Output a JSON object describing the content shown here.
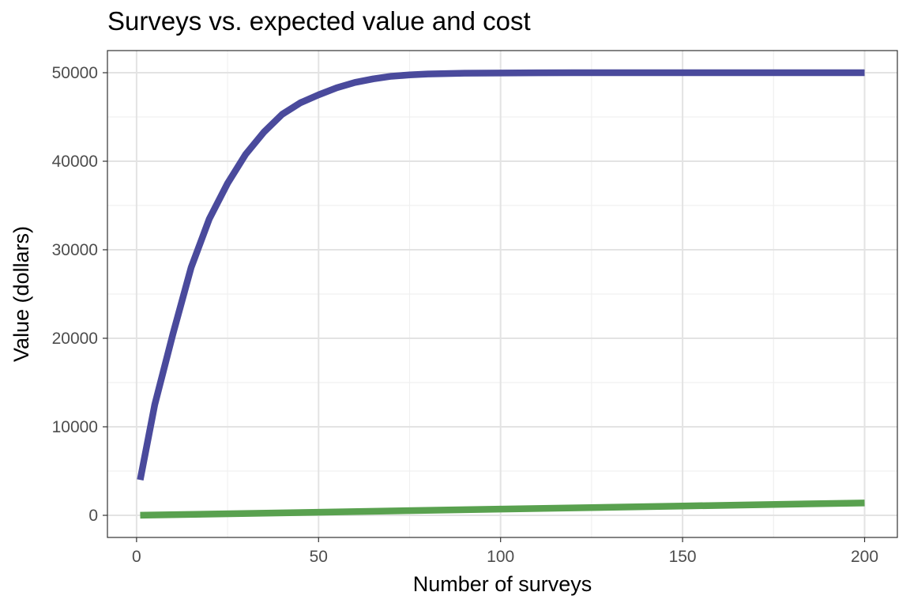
{
  "chart_data": {
    "type": "line",
    "title": "Surveys vs. expected value and cost",
    "xlabel": "Number of surveys",
    "ylabel": "Value (dollars)",
    "xlim": [
      -8,
      209
    ],
    "ylim": [
      -2500,
      52500
    ],
    "x_ticks": [
      0,
      50,
      100,
      150,
      200
    ],
    "x_tick_labels": [
      "0",
      "50",
      "100",
      "150",
      "200"
    ],
    "y_ticks": [
      0,
      10000,
      20000,
      30000,
      40000,
      50000
    ],
    "y_tick_labels": [
      "0",
      "10000",
      "20000",
      "30000",
      "40000",
      "50000"
    ],
    "x_minor_ticks": [
      25,
      75,
      125,
      175
    ],
    "y_minor_ticks": [
      5000,
      15000,
      25000,
      35000,
      45000
    ],
    "grid": true,
    "legend": "none",
    "series": [
      {
        "color": "#4a4a9c",
        "x": [
          1,
          5,
          10,
          15,
          20,
          25,
          30,
          35,
          40,
          45,
          50,
          55,
          60,
          65,
          70,
          75,
          80,
          90,
          100,
          110,
          120,
          130,
          140,
          150,
          160,
          170,
          180,
          190,
          200
        ],
        "values": [
          4000,
          12500,
          20500,
          28000,
          33500,
          37500,
          40800,
          43300,
          45300,
          46600,
          47500,
          48300,
          48900,
          49300,
          49600,
          49750,
          49850,
          49940,
          49970,
          49990,
          50000,
          50000,
          50000,
          50000,
          50000,
          50000,
          50000,
          50000,
          50000
        ]
      },
      {
        "color": "#59a14f",
        "x": [
          1,
          50,
          100,
          150,
          200
        ],
        "values": [
          7,
          350,
          700,
          1050,
          1400
        ]
      }
    ]
  }
}
